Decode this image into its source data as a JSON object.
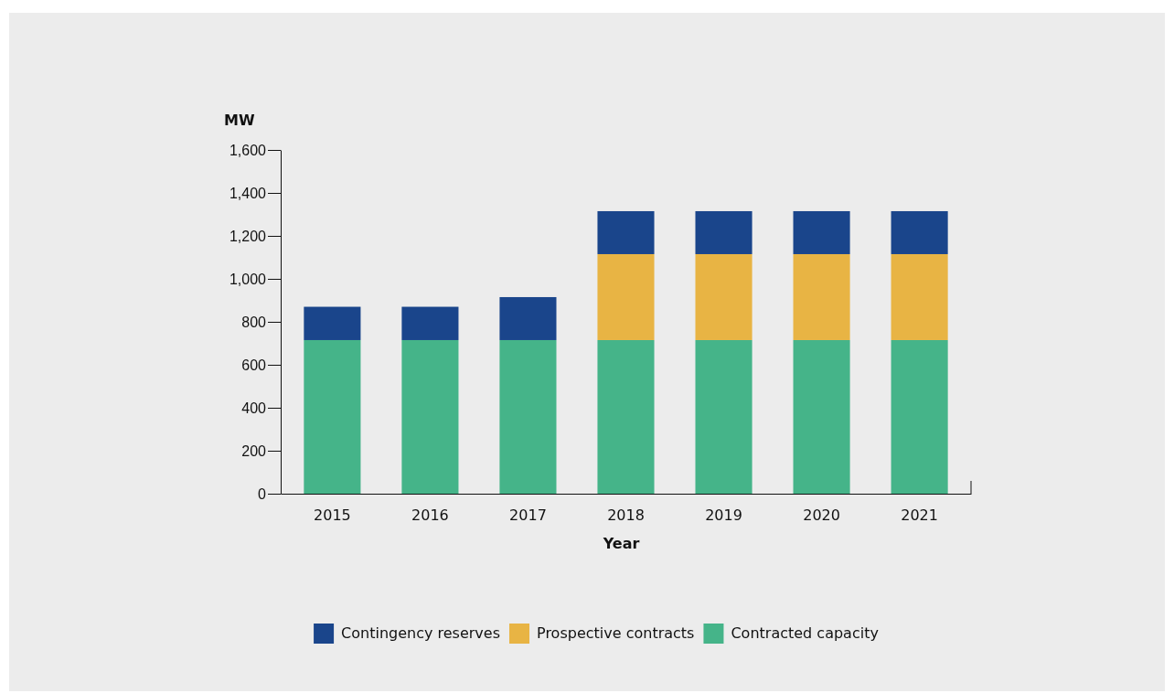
{
  "chart_data": {
    "type": "bar",
    "stacked": true,
    "ylabel": "MW",
    "xlabel": "Year",
    "categories": [
      "2015",
      "2016",
      "2017",
      "2018",
      "2019",
      "2020",
      "2021"
    ],
    "series": [
      {
        "name": "Contracted capacity",
        "color": "#45b489",
        "values": [
          715,
          715,
          715,
          715,
          715,
          715,
          715
        ]
      },
      {
        "name": "Prospective contracts",
        "color": "#e8b444",
        "values": [
          0,
          0,
          0,
          400,
          400,
          400,
          400
        ]
      },
      {
        "name": "Contingency reserves",
        "color": "#1a458b",
        "values": [
          155,
          155,
          200,
          200,
          200,
          200,
          200
        ]
      }
    ],
    "ylim": [
      0,
      1600
    ],
    "yticks": [
      0,
      200,
      400,
      600,
      800,
      {
        "value": 1000,
        "label": "1,000"
      },
      {
        "value": 1200,
        "label": "1,200"
      },
      {
        "value": 1400,
        "label": "1,400"
      },
      {
        "value": 1600,
        "label": "1,600"
      }
    ],
    "grid": false,
    "legend": "bottom"
  }
}
